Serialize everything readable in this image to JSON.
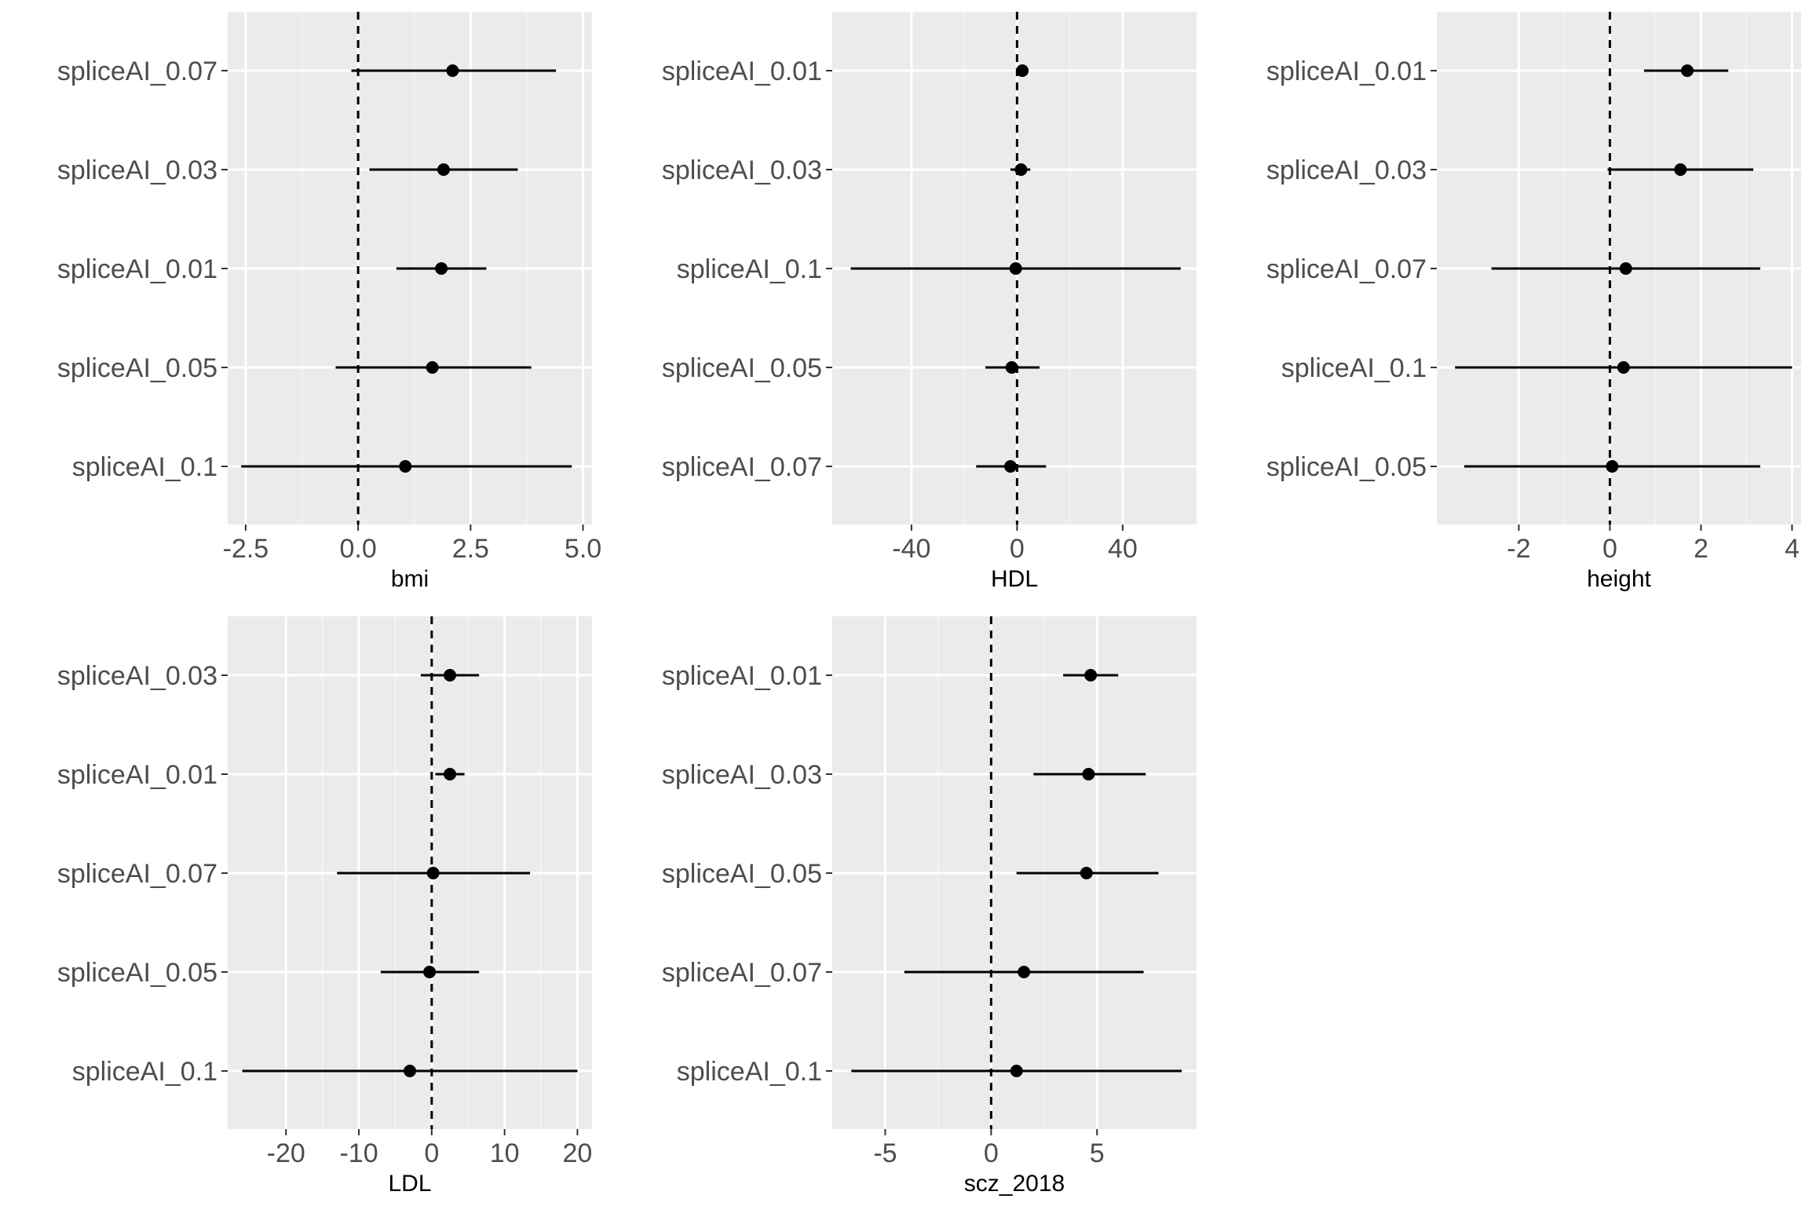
{
  "chart_data": [
    {
      "type": "forest",
      "xlabel": "bmi",
      "xlim": [
        -2.9,
        5.2
      ],
      "xticks": [
        -2.5,
        0.0,
        2.5,
        5.0
      ],
      "xtick_labels": [
        "-2.5",
        "0.0",
        "2.5",
        "5.0"
      ],
      "reference_line": 0,
      "rows": [
        {
          "label": "spliceAI_0.07",
          "estimate": 2.1,
          "lower": -0.15,
          "upper": 4.4
        },
        {
          "label": "spliceAI_0.03",
          "estimate": 1.9,
          "lower": 0.25,
          "upper": 3.55
        },
        {
          "label": "spliceAI_0.01",
          "estimate": 1.85,
          "lower": 0.85,
          "upper": 2.85
        },
        {
          "label": "spliceAI_0.05",
          "estimate": 1.65,
          "lower": -0.5,
          "upper": 3.85
        },
        {
          "label": "spliceAI_0.1",
          "estimate": 1.05,
          "lower": -2.6,
          "upper": 4.75
        }
      ]
    },
    {
      "type": "forest",
      "xlabel": "HDL",
      "xlim": [
        -70,
        68
      ],
      "xticks": [
        -40,
        0,
        40
      ],
      "xtick_labels": [
        "-40",
        "0",
        "40"
      ],
      "reference_line": 0,
      "rows": [
        {
          "label": "spliceAI_0.01",
          "estimate": 2.0,
          "lower": 0.5,
          "upper": 3.5
        },
        {
          "label": "spliceAI_0.03",
          "estimate": 1.5,
          "lower": -2.5,
          "upper": 5.0
        },
        {
          "label": "spliceAI_0.1",
          "estimate": -0.5,
          "lower": -63,
          "upper": 62
        },
        {
          "label": "spliceAI_0.05",
          "estimate": -2.0,
          "lower": -12,
          "upper": 8.5
        },
        {
          "label": "spliceAI_0.07",
          "estimate": -2.5,
          "lower": -15.5,
          "upper": 11
        }
      ]
    },
    {
      "type": "forest",
      "xlabel": "height",
      "xlim": [
        -3.8,
        4.2
      ],
      "xticks": [
        -2,
        0,
        2,
        4
      ],
      "xtick_labels": [
        "-2",
        "0",
        "2",
        "4"
      ],
      "reference_line": 0,
      "rows": [
        {
          "label": "spliceAI_0.01",
          "estimate": 1.7,
          "lower": 0.75,
          "upper": 2.6
        },
        {
          "label": "spliceAI_0.03",
          "estimate": 1.55,
          "lower": -0.05,
          "upper": 3.15
        },
        {
          "label": "spliceAI_0.07",
          "estimate": 0.35,
          "lower": -2.6,
          "upper": 3.3
        },
        {
          "label": "spliceAI_0.1",
          "estimate": 0.3,
          "lower": -3.4,
          "upper": 4.0
        },
        {
          "label": "spliceAI_0.05",
          "estimate": 0.05,
          "lower": -3.2,
          "upper": 3.3
        }
      ]
    },
    {
      "type": "forest",
      "xlabel": "LDL",
      "xlim": [
        -28,
        22
      ],
      "xticks": [
        -20,
        -10,
        0,
        10,
        20
      ],
      "xtick_labels": [
        "-20",
        "-10",
        "0",
        "10",
        "20"
      ],
      "reference_line": 0,
      "rows": [
        {
          "label": "spliceAI_0.03",
          "estimate": 2.5,
          "lower": -1.5,
          "upper": 6.5
        },
        {
          "label": "spliceAI_0.01",
          "estimate": 2.5,
          "lower": 0.5,
          "upper": 4.5
        },
        {
          "label": "spliceAI_0.07",
          "estimate": 0.2,
          "lower": -13,
          "upper": 13.5
        },
        {
          "label": "spliceAI_0.05",
          "estimate": -0.3,
          "lower": -7,
          "upper": 6.5
        },
        {
          "label": "spliceAI_0.1",
          "estimate": -3.0,
          "lower": -26,
          "upper": 20
        }
      ]
    },
    {
      "type": "forest",
      "xlabel": "scz_2018",
      "xlim": [
        -7.5,
        9.7
      ],
      "xticks": [
        -5,
        0,
        5
      ],
      "xtick_labels": [
        "-5",
        "0",
        "5"
      ],
      "reference_line": 0,
      "rows": [
        {
          "label": "spliceAI_0.01",
          "estimate": 4.7,
          "lower": 3.4,
          "upper": 6.0
        },
        {
          "label": "spliceAI_0.03",
          "estimate": 4.6,
          "lower": 2.0,
          "upper": 7.3
        },
        {
          "label": "spliceAI_0.05",
          "estimate": 4.5,
          "lower": 1.2,
          "upper": 7.9
        },
        {
          "label": "spliceAI_0.07",
          "estimate": 1.55,
          "lower": -4.1,
          "upper": 7.2
        },
        {
          "label": "spliceAI_0.1",
          "estimate": 1.2,
          "lower": -6.6,
          "upper": 9.0
        }
      ]
    }
  ],
  "colors": {
    "panel_background": "#ebebeb",
    "grid_major": "#ffffff",
    "grid_minor": "#f5f5f5",
    "point": "#000000",
    "tick_text": "#4d4d4d",
    "axis_title": "#000000"
  }
}
